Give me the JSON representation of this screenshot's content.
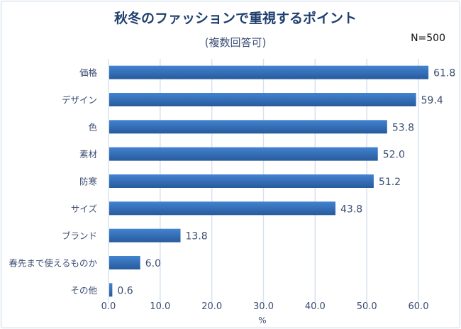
{
  "chart_data": {
    "type": "bar",
    "orientation": "horizontal",
    "title": "秋冬のファッションで重視するポイント",
    "subtitle": "(複数回答可)",
    "annotation": "N=500",
    "categories": [
      "価格",
      "デザイン",
      "色",
      "素材",
      "防寒",
      "サイズ",
      "ブランド",
      "春先まで使えるものか",
      "その他"
    ],
    "values": [
      61.8,
      59.4,
      53.8,
      52.0,
      51.2,
      43.8,
      13.8,
      6.0,
      0.6
    ],
    "value_labels": [
      "61.8",
      "59.4",
      "53.8",
      "52.0",
      "51.2",
      "43.8",
      "13.8",
      "6.0",
      "0.6"
    ],
    "xlabel": "%",
    "ylabel": "",
    "xlim": [
      0,
      60
    ],
    "x_ticks": [
      "0.0",
      "10.0",
      "20.0",
      "30.0",
      "40.0",
      "50.0",
      "60.0"
    ],
    "grid": true,
    "legend": "none",
    "colors": {
      "bar_top": "#4283d0",
      "bar_bottom": "#285a9c",
      "title": "#1f3f6e",
      "text": "#3b4d72",
      "grid": "#d6e2f1"
    }
  }
}
